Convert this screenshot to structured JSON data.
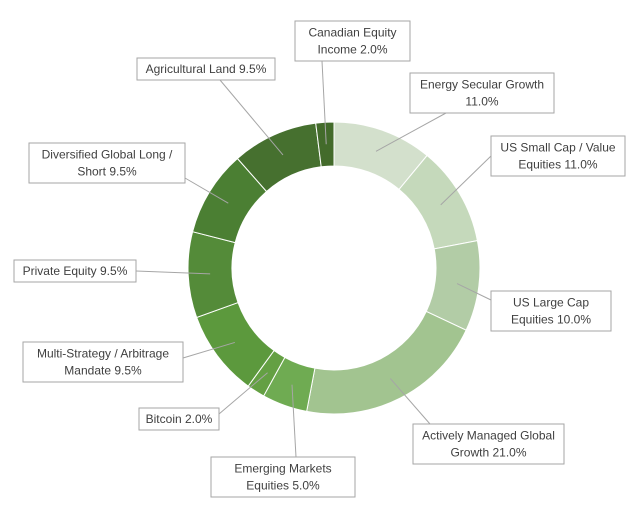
{
  "chart_data": {
    "type": "pie",
    "variant": "donut",
    "title": "",
    "slices": [
      {
        "label": "Energy Secular Growth 11.0%",
        "name": "Energy Secular Growth",
        "value": 11.0,
        "color": "#d3e0cc"
      },
      {
        "label": "US Small Cap / Value Equities 11.0%",
        "name": "US Small Cap / Value Equities",
        "value": 11.0,
        "color": "#c5d9bb"
      },
      {
        "label": "US Large Cap Equities 10.0%",
        "name": "US Large Cap Equities",
        "value": 10.0,
        "color": "#b2cca6"
      },
      {
        "label": "Actively Managed Global Growth 21.0%",
        "name": "Actively Managed Global Growth",
        "value": 21.0,
        "color": "#a2c490"
      },
      {
        "label": "Emerging Markets Equities 5.0%",
        "name": "Emerging Markets Equities",
        "value": 5.0,
        "color": "#6fab52"
      },
      {
        "label": "Bitcoin 2.0%",
        "name": "Bitcoin",
        "value": 2.0,
        "color": "#64a043"
      },
      {
        "label": "Multi-Strategy / Arbitrage Mandate 9.5%",
        "name": "Multi-Strategy / Arbitrage Mandate",
        "value": 9.5,
        "color": "#5c993d"
      },
      {
        "label": "Private Equity 9.5%",
        "name": "Private Equity",
        "value": 9.5,
        "color": "#548b39"
      },
      {
        "label": "Diversified Global Long / Short 9.5%",
        "name": "Diversified Global Long / Short",
        "value": 9.5,
        "color": "#4b7f33"
      },
      {
        "label": "Agricultural Land 9.5%",
        "name": "Agricultural Land",
        "value": 9.5,
        "color": "#46702f"
      },
      {
        "label": "Canadian Equity Income 2.0%",
        "name": "Canadian Equity Income",
        "value": 2.0,
        "color": "#436b2b"
      }
    ],
    "labels_lines": [
      [
        "Energy Secular Growth",
        "11.0%"
      ],
      [
        "US Small Cap / Value",
        "Equities 11.0%"
      ],
      [
        "US Large Cap",
        "Equities 10.0%"
      ],
      [
        "Actively Managed Global",
        "Growth 21.0%"
      ],
      [
        "Emerging Markets",
        "Equities 5.0%"
      ],
      [
        "Bitcoin 2.0%"
      ],
      [
        "Multi-Strategy / Arbitrage",
        "Mandate 9.5%"
      ],
      [
        "Private Equity 9.5%"
      ],
      [
        "Diversified Global Long /",
        "Short 9.5%"
      ],
      [
        "Agricultural Land 9.5%"
      ],
      [
        "Canadian Equity",
        "Income 2.0%"
      ]
    ],
    "legend": "none",
    "data_labels": "outside with leader lines"
  }
}
